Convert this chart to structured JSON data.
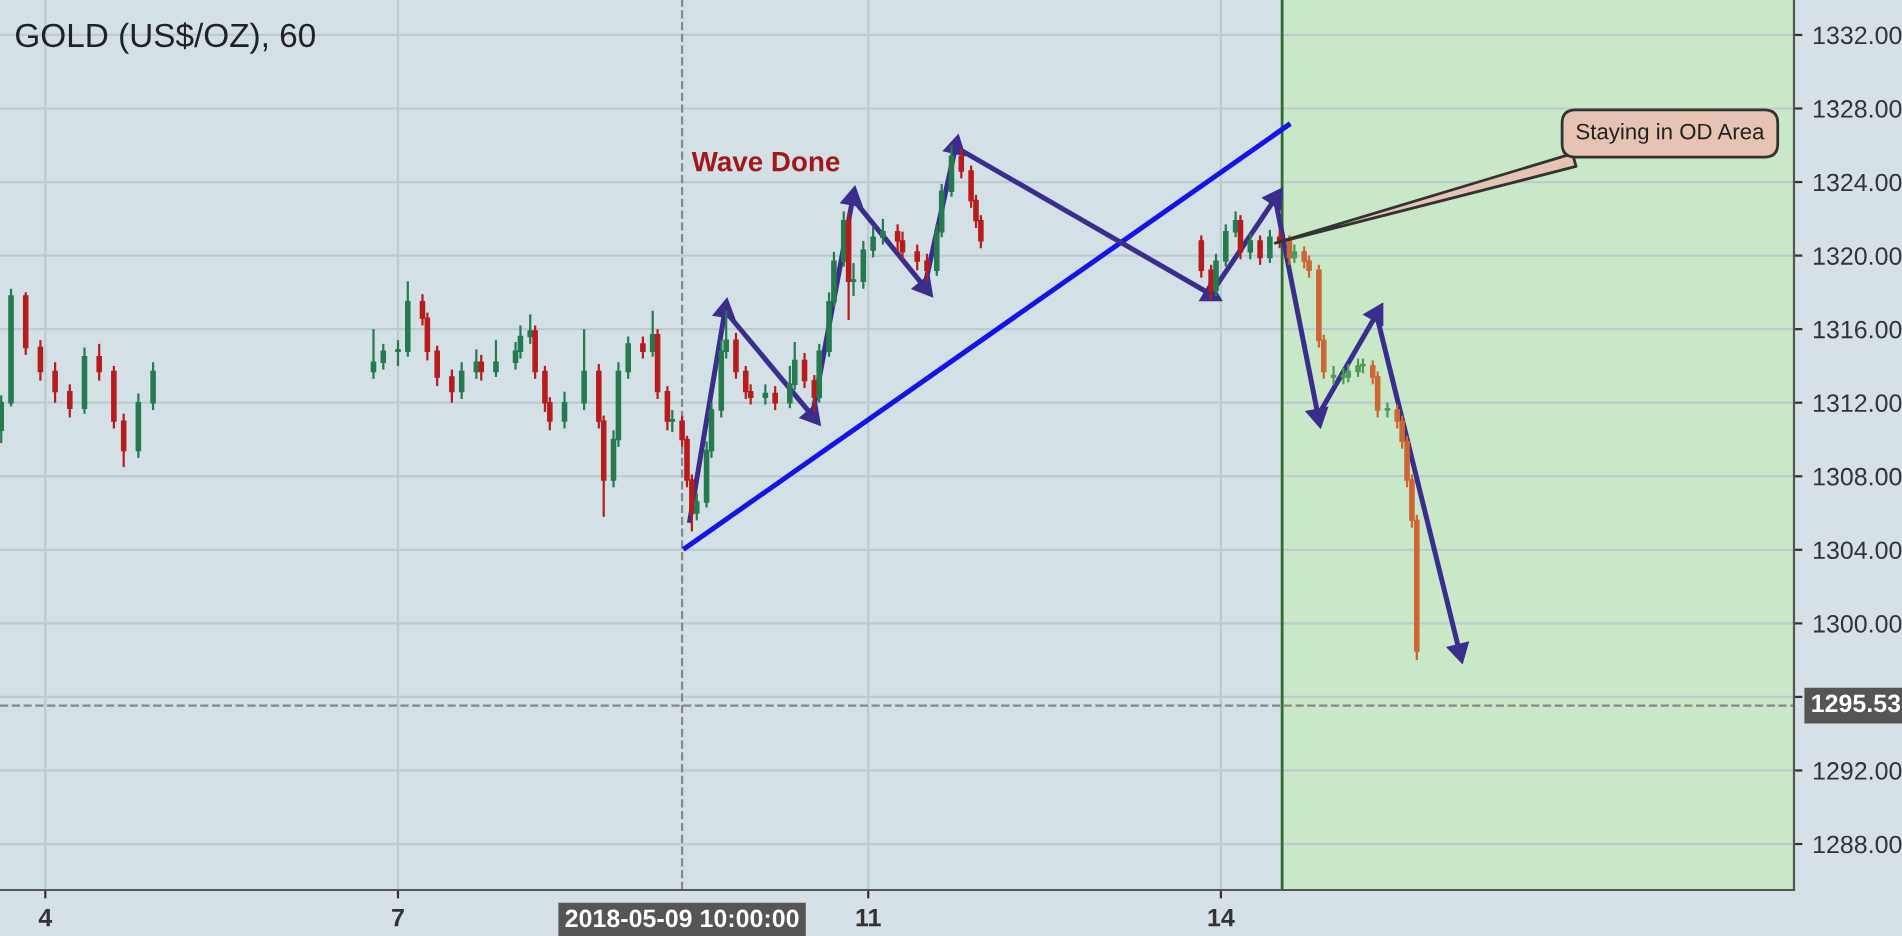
{
  "chart_data": {
    "type": "candlestick",
    "title": "GOLD (US$/OZ), 60",
    "x": [
      "2018-05-03T15:00",
      "2018-05-03T17:00",
      "2018-05-03T20:00",
      "2018-05-03T23:00",
      "2018-05-04T02:00",
      "2018-05-04T05:00",
      "2018-05-04T08:00",
      "2018-05-04T11:00",
      "2018-05-04T14:00",
      "2018-05-04T16:00",
      "2018-05-04T19:00",
      "2018-05-04T22:00",
      "2018-05-06T19:00",
      "2018-05-06T21:00",
      "2018-05-07T00:00",
      "2018-05-07T02:00",
      "2018-05-07T05:00",
      "2018-05-07T06:00",
      "2018-05-07T08:00",
      "2018-05-07T11:00",
      "2018-05-07T13:00",
      "2018-05-07T16:00",
      "2018-05-07T17:00",
      "2018-05-07T20:00",
      "2018-05-08T00:00",
      "2018-05-08T01:00",
      "2018-05-08T03:00",
      "2018-05-08T04:00",
      "2018-05-08T06:00",
      "2018-05-08T07:00",
      "2018-05-08T10:00",
      "2018-05-08T14:00",
      "2018-05-08T17:00",
      "2018-05-08T18:00",
      "2018-05-08T20:00",
      "2018-05-08T21:00",
      "2018-05-08T23:00",
      "2018-05-09T02:00",
      "2018-05-09T04:00",
      "2018-05-09T05:00",
      "2018-05-09T07:00",
      "2018-05-09T08:00",
      "2018-05-09T10:00",
      "2018-05-09T11:00",
      "2018-05-09T12:00",
      "2018-05-09T13:00",
      "2018-05-09T15:00",
      "2018-05-09T16:00",
      "2018-05-09T18:00",
      "2018-05-09T19:00",
      "2018-05-09T21:00",
      "2018-05-09T23:00",
      "2018-05-10T00:00",
      "2018-05-10T03:00",
      "2018-05-10T05:00",
      "2018-05-10T08:00",
      "2018-05-10T09:00",
      "2018-05-10T11:00",
      "2018-05-10T13:00",
      "2018-05-10T14:00",
      "2018-05-10T16:00",
      "2018-05-10T17:00",
      "2018-05-10T19:00",
      "2018-05-10T20:00",
      "2018-05-10T21:00",
      "2018-05-10T23:00",
      "2018-05-11T01:00",
      "2018-05-11T03:00",
      "2018-05-11T06:00",
      "2018-05-11T07:00",
      "2018-05-11T10:00",
      "2018-05-11T12:00",
      "2018-05-11T14:00",
      "2018-05-11T15:00",
      "2018-05-11T17:00",
      "2018-05-11T19:00",
      "2018-05-11T21:00",
      "2018-05-11T22:00",
      "2018-05-11T23:00",
      "2018-05-13T20:00",
      "2018-05-13T22:00",
      "2018-05-13T23:00",
      "2018-05-14T01:00",
      "2018-05-14T03:00",
      "2018-05-14T04:00",
      "2018-05-14T06:00",
      "2018-05-14T08:00",
      "2018-05-14T10:00",
      "2018-05-14T12:00",
      "2018-05-14T14:00",
      "2018-05-14T15:00",
      "2018-05-14T17:00",
      "2018-05-14T18:00",
      "2018-05-14T20:00",
      "2018-05-14T21:00",
      "2018-05-14T23:00",
      "2018-05-15T01:00",
      "2018-05-15T02:00",
      "2018-05-15T04:00",
      "2018-05-15T05:00",
      "2018-05-15T07:00",
      "2018-05-15T08:00",
      "2018-05-15T10:00",
      "2018-05-15T12:00",
      "2018-05-15T13:00",
      "2018-05-15T14:00",
      "2018-05-15T15:00",
      "2018-05-15T16:00"
    ],
    "ohlc": [
      [
        1310.5,
        1312.4,
        1309.8,
        1312.0
      ],
      [
        1312.0,
        1318.2,
        1311.8,
        1317.8
      ],
      [
        1317.8,
        1318.0,
        1314.6,
        1315.0
      ],
      [
        1315.0,
        1315.4,
        1313.2,
        1313.7
      ],
      [
        1313.7,
        1314.2,
        1312.0,
        1312.6
      ],
      [
        1312.6,
        1313.0,
        1311.2,
        1311.7
      ],
      [
        1311.7,
        1315.0,
        1311.4,
        1314.5
      ],
      [
        1314.5,
        1315.2,
        1313.2,
        1313.7
      ],
      [
        1313.7,
        1314.0,
        1310.6,
        1311.0
      ],
      [
        1311.0,
        1311.4,
        1308.5,
        1309.4
      ],
      [
        1309.4,
        1312.5,
        1309.0,
        1312.0
      ],
      [
        1312.0,
        1314.2,
        1311.6,
        1313.7
      ],
      [
        1313.7,
        1316.0,
        1313.3,
        1314.2
      ],
      [
        1314.2,
        1315.2,
        1313.8,
        1314.8
      ],
      [
        1314.8,
        1315.4,
        1314.0,
        1314.8
      ],
      [
        1314.8,
        1318.6,
        1314.5,
        1317.5
      ],
      [
        1317.5,
        1317.9,
        1316.2,
        1316.6
      ],
      [
        1316.6,
        1316.9,
        1314.3,
        1314.8
      ],
      [
        1314.8,
        1315.1,
        1312.9,
        1313.4
      ],
      [
        1313.4,
        1313.8,
        1312.0,
        1312.6
      ],
      [
        1312.6,
        1314.2,
        1312.2,
        1313.7
      ],
      [
        1313.7,
        1314.9,
        1313.3,
        1314.2
      ],
      [
        1314.2,
        1314.6,
        1313.2,
        1313.7
      ],
      [
        1313.7,
        1315.4,
        1313.4,
        1314.2
      ],
      [
        1314.2,
        1315.3,
        1313.8,
        1314.8
      ],
      [
        1314.8,
        1316.2,
        1314.4,
        1315.6
      ],
      [
        1315.6,
        1316.8,
        1315.2,
        1315.9
      ],
      [
        1315.9,
        1316.2,
        1313.3,
        1313.7
      ],
      [
        1313.7,
        1314.0,
        1311.5,
        1312.0
      ],
      [
        1312.0,
        1312.3,
        1310.5,
        1311.0
      ],
      [
        1311.0,
        1312.6,
        1310.6,
        1312.0
      ],
      [
        1312.0,
        1316.0,
        1311.6,
        1313.7
      ],
      [
        1313.7,
        1314.1,
        1310.6,
        1311.0
      ],
      [
        1311.0,
        1311.3,
        1305.8,
        1307.8
      ],
      [
        1307.8,
        1310.5,
        1307.4,
        1310.0
      ],
      [
        1310.0,
        1314.2,
        1309.6,
        1313.7
      ],
      [
        1313.7,
        1315.6,
        1313.3,
        1315.2
      ],
      [
        1315.2,
        1315.6,
        1314.4,
        1314.8
      ],
      [
        1314.8,
        1317.0,
        1314.5,
        1315.7
      ],
      [
        1315.7,
        1316.0,
        1312.2,
        1312.6
      ],
      [
        1312.6,
        1312.9,
        1310.5,
        1311.0
      ],
      [
        1311.0,
        1311.6,
        1310.4,
        1311.0
      ],
      [
        1311.0,
        1311.3,
        1309.6,
        1310.0
      ],
      [
        1310.0,
        1310.2,
        1307.4,
        1307.8
      ],
      [
        1307.8,
        1308.1,
        1305.0,
        1306.0
      ],
      [
        1306.0,
        1307.1,
        1305.6,
        1306.6
      ],
      [
        1306.6,
        1309.9,
        1306.3,
        1309.4
      ],
      [
        1309.4,
        1312.0,
        1309.0,
        1311.6
      ],
      [
        1311.6,
        1315.4,
        1311.2,
        1314.8
      ],
      [
        1314.8,
        1317.0,
        1314.4,
        1315.4
      ],
      [
        1315.4,
        1315.8,
        1313.3,
        1313.7
      ],
      [
        1313.7,
        1314.0,
        1312.2,
        1312.6
      ],
      [
        1312.6,
        1313.0,
        1311.9,
        1312.3
      ],
      [
        1312.3,
        1313.0,
        1311.9,
        1312.5
      ],
      [
        1312.5,
        1312.9,
        1311.6,
        1312.0
      ],
      [
        1312.0,
        1314.0,
        1311.7,
        1313.0
      ],
      [
        1313.0,
        1315.3,
        1312.7,
        1314.3
      ],
      [
        1314.3,
        1314.7,
        1312.8,
        1313.2
      ],
      [
        1313.2,
        1313.5,
        1311.5,
        1312.3
      ],
      [
        1312.3,
        1315.2,
        1312.0,
        1314.8
      ],
      [
        1314.8,
        1318.0,
        1314.5,
        1317.5
      ],
      [
        1317.5,
        1320.2,
        1317.2,
        1319.7
      ],
      [
        1319.7,
        1322.4,
        1319.4,
        1321.9
      ],
      [
        1321.9,
        1322.3,
        1316.5,
        1318.6
      ],
      [
        1318.6,
        1319.6,
        1317.8,
        1318.6
      ],
      [
        1318.6,
        1320.8,
        1318.2,
        1320.3
      ],
      [
        1320.3,
        1321.6,
        1319.9,
        1321.0
      ],
      [
        1321.0,
        1322.0,
        1320.6,
        1321.3
      ],
      [
        1321.3,
        1321.7,
        1320.2,
        1320.8
      ],
      [
        1320.8,
        1321.3,
        1319.8,
        1320.2
      ],
      [
        1320.2,
        1320.6,
        1319.2,
        1319.7
      ],
      [
        1319.7,
        1320.1,
        1318.6,
        1319.2
      ],
      [
        1319.2,
        1321.7,
        1318.9,
        1321.3
      ],
      [
        1321.3,
        1323.9,
        1321.0,
        1323.5
      ],
      [
        1323.5,
        1326.0,
        1323.2,
        1325.4
      ],
      [
        1325.4,
        1325.8,
        1324.2,
        1324.6
      ],
      [
        1324.6,
        1324.9,
        1322.6,
        1323.0
      ],
      [
        1323.0,
        1323.3,
        1321.5,
        1321.9
      ],
      [
        1321.9,
        1322.2,
        1320.4,
        1320.8
      ],
      [
        1320.8,
        1321.1,
        1318.8,
        1319.2
      ],
      [
        1319.2,
        1319.5,
        1317.6,
        1318.1
      ],
      [
        1318.1,
        1320.1,
        1317.8,
        1319.7
      ],
      [
        1319.7,
        1321.7,
        1319.4,
        1321.3
      ],
      [
        1321.3,
        1322.4,
        1321.0,
        1321.9
      ],
      [
        1321.9,
        1322.2,
        1319.8,
        1320.2
      ],
      [
        1320.2,
        1321.2,
        1319.8,
        1320.8
      ],
      [
        1320.8,
        1321.1,
        1319.5,
        1319.9
      ],
      [
        1319.9,
        1321.4,
        1319.6,
        1321.0
      ],
      [
        1321.0,
        1321.4,
        1320.4,
        1320.8
      ],
      [
        1320.8,
        1321.1,
        1319.5,
        1319.9
      ],
      [
        1319.9,
        1320.6,
        1319.6,
        1320.2
      ],
      [
        1320.2,
        1320.5,
        1319.3,
        1319.7
      ],
      [
        1319.7,
        1320.0,
        1318.8,
        1319.2
      ],
      [
        1319.2,
        1319.5,
        1315.0,
        1315.4
      ],
      [
        1315.4,
        1315.7,
        1313.3,
        1313.7
      ],
      [
        1313.4,
        1314.0,
        1313.0,
        1313.4
      ],
      [
        1313.4,
        1313.9,
        1313.0,
        1313.4
      ],
      [
        1313.4,
        1314.1,
        1313.1,
        1313.7
      ],
      [
        1313.7,
        1314.4,
        1313.4,
        1314.0
      ],
      [
        1314.0,
        1314.4,
        1313.6,
        1314.0
      ],
      [
        1314.0,
        1314.3,
        1313.0,
        1313.4
      ],
      [
        1313.4,
        1313.7,
        1311.2,
        1311.6
      ],
      [
        1311.6,
        1312.0,
        1311.2,
        1311.6
      ],
      [
        1311.6,
        1311.9,
        1310.6,
        1311.0
      ],
      [
        1311.0,
        1311.3,
        1309.5,
        1309.9
      ],
      [
        1309.9,
        1310.2,
        1307.4,
        1307.8
      ],
      [
        1307.8,
        1308.1,
        1305.2,
        1305.6
      ],
      [
        1305.6,
        1305.9,
        1298.0,
        1298.5
      ]
    ],
    "colors": [
      "#267a4f",
      "#267a4f",
      "#b71c1c",
      "#b71c1c",
      "#b71c1c",
      "#b71c1c",
      "#267a4f",
      "#b71c1c",
      "#b71c1c",
      "#b71c1c",
      "#267a4f",
      "#267a4f",
      "#267a4f",
      "#267a4f",
      "#267a4f",
      "#267a4f",
      "#b71c1c",
      "#b71c1c",
      "#b71c1c",
      "#b71c1c",
      "#267a4f",
      "#267a4f",
      "#b71c1c",
      "#267a4f",
      "#267a4f",
      "#267a4f",
      "#267a4f",
      "#b71c1c",
      "#b71c1c",
      "#b71c1c",
      "#267a4f",
      "#267a4f",
      "#b71c1c",
      "#b71c1c",
      "#267a4f",
      "#267a4f",
      "#267a4f",
      "#b71c1c",
      "#267a4f",
      "#b71c1c",
      "#b71c1c",
      "#267a4f",
      "#b71c1c",
      "#b71c1c",
      "#b71c1c",
      "#267a4f",
      "#267a4f",
      "#267a4f",
      "#267a4f",
      "#267a4f",
      "#b71c1c",
      "#b71c1c",
      "#b71c1c",
      "#267a4f",
      "#b71c1c",
      "#267a4f",
      "#267a4f",
      "#b71c1c",
      "#b71c1c",
      "#267a4f",
      "#267a4f",
      "#267a4f",
      "#267a4f",
      "#b71c1c",
      "#267a4f",
      "#267a4f",
      "#267a4f",
      "#267a4f",
      "#b71c1c",
      "#b71c1c",
      "#b71c1c",
      "#b71c1c",
      "#267a4f",
      "#267a4f",
      "#267a4f",
      "#b71c1c",
      "#b71c1c",
      "#b71c1c",
      "#b71c1c",
      "#b71c1c",
      "#b71c1c",
      "#267a4f",
      "#267a4f",
      "#267a4f",
      "#b71c1c",
      "#267a4f",
      "#b71c1c",
      "#267a4f",
      "#b71c1c",
      "#cc6633",
      "#4f9a5a",
      "#cc6633",
      "#cc6633",
      "#cc6633",
      "#cc6633",
      "#4f9a5a",
      "#4f9a5a",
      "#4f9a5a",
      "#4f9a5a",
      "#4f9a5a",
      "#cc6633",
      "#cc6633",
      "#4f9a5a",
      "#cc6633",
      "#cc6633",
      "#cc6633",
      "#cc6633",
      "#cc6633"
    ],
    "series": [
      {
        "type": "line",
        "color": "#1414e6",
        "x": [
          "2018-05-09T10:40",
          "2018-05-14T13:45"
        ],
        "values": [
          1304.1,
          1327.1
        ]
      },
      {
        "type": "line",
        "marker": "triangle",
        "color": "#3b2d8c",
        "x": [
          "2018-05-09T11:35",
          "2018-05-09T18:45",
          "2018-05-10T12:35",
          "2018-05-10T20:50",
          "2018-05-11T11:30",
          "2018-05-11T17:50",
          "2018-05-13T21:55",
          "2018-05-14T11:05",
          "2018-05-14T19:50",
          "2018-05-15T07:45",
          "2018-05-16T00:40"
        ],
        "values": [
          1305.6,
          1317.0,
          1311.3,
          1323.1,
          1318.3,
          1325.9,
          1317.9,
          1323.1,
          1311.3,
          1316.8,
          1298.5
        ]
      }
    ],
    "xlim": [
      "2018-05-03T14:45",
      "2018-05-18T21:00"
    ],
    "xticks": [
      {
        "value": "2018-05-04",
        "label": "4"
      },
      {
        "value": "2018-05-07",
        "label": "7"
      },
      {
        "value": "2018-05-11",
        "label": "11"
      },
      {
        "value": "2018-05-14",
        "label": "14"
      }
    ],
    "ylim": [
      1285.5,
      1333.9
    ],
    "yticks": [
      {
        "value": 1288,
        "label": "1288.00"
      },
      {
        "value": 1292,
        "label": "1292.00"
      },
      {
        "value": 1296,
        "label": null
      },
      {
        "value": 1300,
        "label": "1300.00"
      },
      {
        "value": 1304,
        "label": "1304.00"
      },
      {
        "value": 1308,
        "label": "1308.00"
      },
      {
        "value": 1312,
        "label": "1312.00"
      },
      {
        "value": 1316,
        "label": "1316.00"
      },
      {
        "value": 1320,
        "label": "1320.00"
      },
      {
        "value": 1324,
        "label": "1324.00"
      },
      {
        "value": 1328,
        "label": "1328.00"
      },
      {
        "value": 1332,
        "label": "1332.00"
      }
    ],
    "grid": true,
    "ref_lines": [
      {
        "axis": "x",
        "value": "2018-05-09T10:00",
        "label": "2018-05-09 10:00:00",
        "line_style": "dashed",
        "color": "#888888"
      },
      {
        "axis": "y",
        "value": 1295.53,
        "label": "1295.53",
        "line_style": "dashed",
        "color": "#888888"
      },
      {
        "axis": "x",
        "value": "2018-05-14T12:30",
        "line_style": "solid",
        "color": "#2e6b2e"
      }
    ],
    "bands": [
      {
        "axis": "x",
        "from": "2018-05-14T12:30",
        "to": "2018-05-18T21:00",
        "color": "#c8e8c8"
      }
    ],
    "annotations": [
      "Wave Done",
      {
        "text": "Staying in OD Area",
        "x": "2018-05-14T10:00",
        "y": 1320.6
      }
    ]
  }
}
